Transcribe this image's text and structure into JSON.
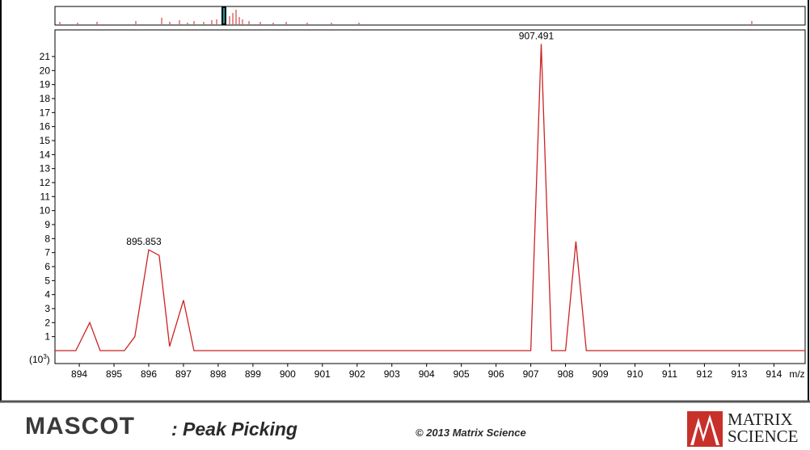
{
  "footer": {
    "product": "MASCOT",
    "subtitle": ": Peak Picking",
    "copyright": "© 2013 Matrix Science"
  },
  "logo": {
    "line1": "MATRIX",
    "line2": "SCIENCE",
    "color": "#c8302a"
  },
  "chart_data": {
    "type": "line",
    "title": "",
    "xlabel": "m/z",
    "ylabel": "",
    "y_unit_label": "(10",
    "y_unit_exp": "3",
    "y_unit_close": ")",
    "xlim": [
      893.3,
      914.9
    ],
    "ylim": [
      0,
      22.3
    ],
    "x_ticks": [
      894,
      895,
      896,
      897,
      898,
      899,
      900,
      901,
      902,
      903,
      904,
      905,
      906,
      907,
      908,
      909,
      910,
      911,
      912,
      913,
      914
    ],
    "y_ticks": [
      1,
      2,
      3,
      4,
      5,
      6,
      7,
      8,
      9,
      10,
      11,
      12,
      13,
      14,
      15,
      16,
      17,
      18,
      19,
      20,
      21
    ],
    "series": [
      {
        "color": "#cc2222",
        "x": [
          893.3,
          893.9,
          894.3,
          894.6,
          895.3,
          895.6,
          896.0,
          896.3,
          896.6,
          897.0,
          897.3,
          907.0,
          907.3,
          907.6,
          908.0,
          908.3,
          908.6,
          914.9
        ],
        "y": [
          0,
          0,
          2.0,
          0,
          0,
          1.0,
          7.2,
          6.8,
          0.3,
          3.6,
          0,
          0,
          21.9,
          0,
          0,
          7.8,
          0,
          0
        ]
      }
    ],
    "annotations": [
      {
        "x": 895.853,
        "y": 7.2,
        "label": "895.853"
      },
      {
        "x": 907.491,
        "y": 21.9,
        "label": "907.491"
      }
    ],
    "overview": {
      "color": "#cc2222",
      "window_color": "#1a9a9a"
    }
  }
}
